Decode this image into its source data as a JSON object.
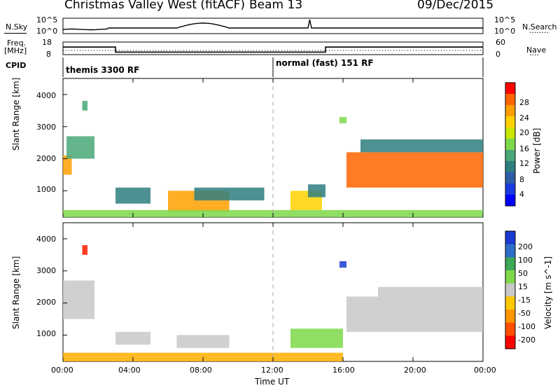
{
  "header": {
    "title": "Christmas Valley West (fitACF)",
    "beam": "Beam 13",
    "date": "09/Dec/2015"
  },
  "noise_panel": {
    "left_label": "N.Sky",
    "left_ticks": [
      "10^5",
      "10^0"
    ],
    "right_ticks": [
      "10^5",
      "10^0"
    ],
    "right_label": "N.Search",
    "right_label_line": "........"
  },
  "freq_panel": {
    "left_label_line1": "Freq.",
    "left_label_line2": "[MHz]",
    "left_ticks": [
      "18",
      "8"
    ],
    "right_ticks": [
      "60",
      "0"
    ],
    "right_label": "Nave",
    "right_label_line": "....",
    "cpid_label": "CPID",
    "freq_steps": [
      {
        "t": 0,
        "v": 14
      },
      {
        "t": 3,
        "v": 10
      },
      {
        "t": 15,
        "v": 14
      },
      {
        "t": 24,
        "v": 14
      }
    ]
  },
  "cpid_panel": {
    "mode1": "themis 3300 RF",
    "mode2": "normal (fast) 151 RF",
    "switch_hour": 12
  },
  "chart_data": [
    {
      "type": "heatmap",
      "title": "",
      "xlabel": "",
      "ylabel": "Slant Range [km]",
      "xlim": [
        0,
        24
      ],
      "ylim": [
        180,
        4500
      ],
      "yticks": [
        "1000",
        "2000",
        "3000",
        "4000"
      ],
      "colorbar": {
        "label": "Power [dB]",
        "ticks": [
          "28",
          "24",
          "20",
          "16",
          "12",
          "8",
          "4"
        ],
        "colors": [
          "#ff0000",
          "#ff6400",
          "#ffa000",
          "#ffd200",
          "#c8e600",
          "#7ed84a",
          "#4aa878",
          "#2e7e80",
          "#2e5ea8",
          "#1a3ae0",
          "#0000ff"
        ]
      },
      "regions": [
        {
          "t0": 0.0,
          "t1": 0.5,
          "r0": 1500,
          "r1": 2100,
          "level": 0.85
        },
        {
          "t0": 0.2,
          "t1": 1.8,
          "r0": 2000,
          "r1": 2700,
          "level": 0.45
        },
        {
          "t0": 1.1,
          "t1": 1.4,
          "r0": 3500,
          "r1": 3800,
          "level": 0.45
        },
        {
          "t0": 3.0,
          "t1": 5.0,
          "r0": 600,
          "r1": 1100,
          "level": 0.35
        },
        {
          "t0": 6.0,
          "t1": 9.5,
          "r0": 350,
          "r1": 1000,
          "level": 0.85
        },
        {
          "t0": 7.5,
          "t1": 11.5,
          "r0": 700,
          "r1": 1100,
          "level": 0.35
        },
        {
          "t0": 13.0,
          "t1": 14.8,
          "r0": 400,
          "r1": 1000,
          "level": 0.7
        },
        {
          "t0": 14.0,
          "t1": 15.0,
          "r0": 800,
          "r1": 1200,
          "level": 0.35
        },
        {
          "t0": 15.8,
          "t1": 16.2,
          "r0": 3100,
          "r1": 3300,
          "level": 0.5
        },
        {
          "t0": 16.2,
          "t1": 24.0,
          "r0": 1100,
          "r1": 2200,
          "level": 0.95
        },
        {
          "t0": 17.0,
          "t1": 24.0,
          "r0": 2200,
          "r1": 2600,
          "level": 0.35
        },
        {
          "t0": 0.0,
          "t1": 24.0,
          "r0": 180,
          "r1": 400,
          "level": 0.55
        }
      ]
    },
    {
      "type": "heatmap",
      "title": "",
      "xlabel": "Time UT",
      "ylabel": "Slant Range [km]",
      "xlim": [
        0,
        24
      ],
      "ylim": [
        180,
        4500
      ],
      "yticks": [
        "1000",
        "2000",
        "3000",
        "4000"
      ],
      "xticks": [
        "00:00",
        "04:00",
        "08:00",
        "12:00",
        "16:00",
        "20:00",
        "00:00"
      ],
      "colorbar": {
        "label": "Velocity [m s^-1]",
        "ticks": [
          "200",
          "100",
          "50",
          "15",
          "-15",
          "-50",
          "-100",
          "-200"
        ],
        "colors": [
          "#1a3ad0",
          "#2e6ec8",
          "#3ca858",
          "#7ed84a",
          "#c8c8c8",
          "#ffc800",
          "#ff9600",
          "#ff5000",
          "#ff0000"
        ]
      },
      "regions": [
        {
          "t0": 0.0,
          "t1": 1.8,
          "r0": 1500,
          "r1": 2700,
          "level": "ground"
        },
        {
          "t0": 1.1,
          "t1": 1.4,
          "r0": 3500,
          "r1": 3800,
          "level": "neg_high"
        },
        {
          "t0": 3.0,
          "t1": 5.0,
          "r0": 700,
          "r1": 1100,
          "level": "ground"
        },
        {
          "t0": 6.5,
          "t1": 9.5,
          "r0": 600,
          "r1": 1000,
          "level": "ground"
        },
        {
          "t0": 0.0,
          "t1": 16.0,
          "r0": 180,
          "r1": 450,
          "level": "neg_low"
        },
        {
          "t0": 13.0,
          "t1": 16.0,
          "r0": 600,
          "r1": 1200,
          "level": "pos_low"
        },
        {
          "t0": 15.8,
          "t1": 16.2,
          "r0": 3100,
          "r1": 3300,
          "level": "pos_high"
        },
        {
          "t0": 16.2,
          "t1": 24.0,
          "r0": 1100,
          "r1": 2200,
          "level": "ground"
        },
        {
          "t0": 18.0,
          "t1": 24.0,
          "r0": 2200,
          "r1": 2500,
          "level": "ground"
        }
      ]
    }
  ]
}
